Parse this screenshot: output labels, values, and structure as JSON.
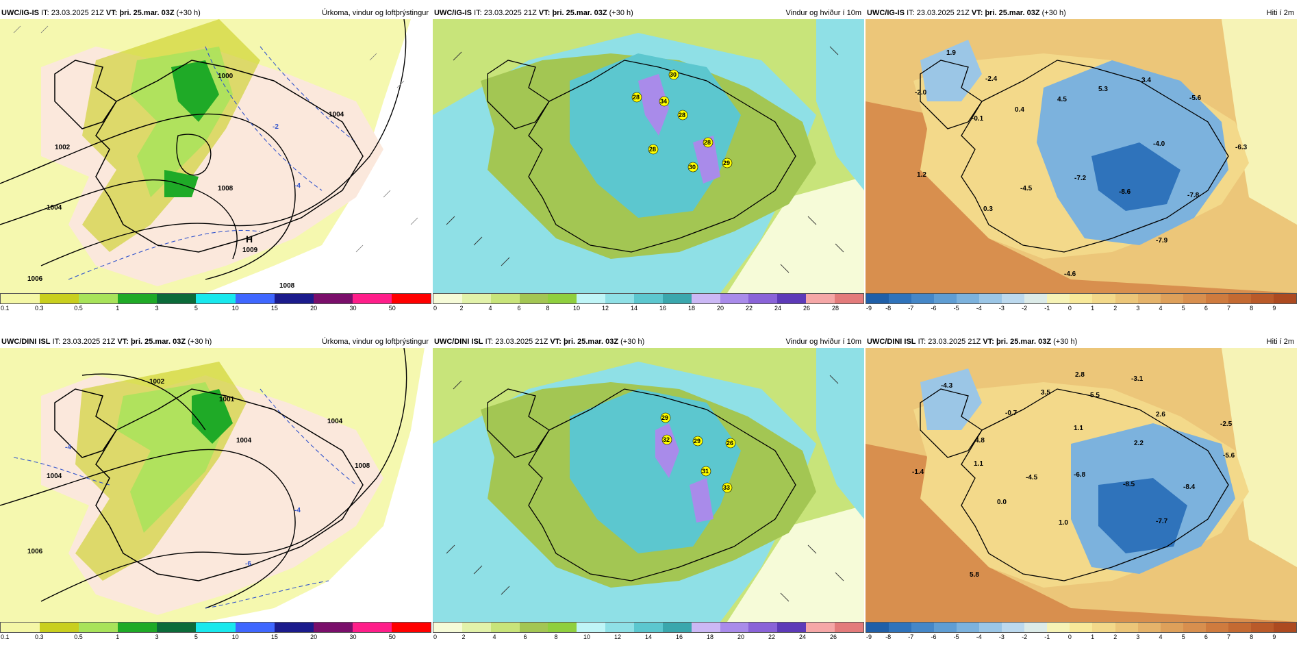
{
  "panels": [
    {
      "id": "p1",
      "model": "UWC/IG-IS",
      "it_label": "IT:",
      "it": "23.03.2025 21Z",
      "vt_label": "VT:",
      "vt": "þri. 25.mar. 03Z",
      "lead": "(+30 h)",
      "title": "Úrkoma, vindur og loftþrýstingur",
      "colors": [
        "#f4f7a6",
        "#c9cf1e",
        "#a8e35a",
        "#1faa27",
        "#0c6b3a",
        "#19e8ed",
        "#3f67ff",
        "#1b1b8c",
        "#7a0f6b",
        "#ff1e8a",
        "#ff0000"
      ],
      "ticks": [
        "0.1",
        "0.3",
        "0.5",
        "1",
        "3",
        "5",
        "10",
        "15",
        "20",
        "30",
        "50"
      ],
      "labels": [
        {
          "t": "1000"
        },
        {
          "t": "1004"
        },
        {
          "t": "1004"
        },
        {
          "t": "1006"
        },
        {
          "t": "1008"
        },
        {
          "t": "1008"
        },
        {
          "t": "1009"
        },
        {
          "t": "H"
        },
        {
          "t": "1002"
        },
        {
          "t": "-2"
        },
        {
          "t": "-4"
        }
      ]
    },
    {
      "id": "p2",
      "model": "UWC/IG-IS",
      "it_label": "IT:",
      "it": "23.03.2025 21Z",
      "vt_label": "VT:",
      "vt": "þri. 25.mar. 03Z",
      "lead": "(+30 h)",
      "title": "Vindur og hviður í 10m",
      "colors": [
        "#f6fbd8",
        "#e2f2aa",
        "#c8e47a",
        "#a3c653",
        "#8fcf3e",
        "#bff5f7",
        "#8fe0e6",
        "#5cc7cf",
        "#3aa7ad",
        "#cbb8f5",
        "#a98bea",
        "#8a63d8",
        "#5d3ab8",
        "#f5a7a7",
        "#e37b7b"
      ],
      "ticks": [
        "0",
        "2",
        "4",
        "6",
        "8",
        "10",
        "12",
        "14",
        "16",
        "18",
        "20",
        "22",
        "24",
        "26",
        "28"
      ],
      "labels": [
        {
          "t": "28"
        },
        {
          "t": "30"
        },
        {
          "t": "34"
        },
        {
          "t": "28"
        },
        {
          "t": "28"
        },
        {
          "t": "28"
        },
        {
          "t": "30"
        },
        {
          "t": "29"
        }
      ]
    },
    {
      "id": "p3",
      "model": "UWC/IG-IS",
      "it_label": "IT:",
      "it": "23.03.2025 21Z",
      "vt_label": "VT:",
      "vt": "þri. 25.mar. 03Z",
      "lead": "(+30 h)",
      "title": "Hiti í 2m",
      "colors": [
        "#1f5fa8",
        "#2f73bb",
        "#4587c8",
        "#5f9dd3",
        "#7cb2dd",
        "#9bc6e6",
        "#bcd9ee",
        "#dcebe8",
        "#f6f3b6",
        "#f8e99a",
        "#f3d98a",
        "#ecc679",
        "#e5b36a",
        "#dea05a",
        "#d88f4e",
        "#cf7b3e",
        "#c46a32",
        "#ba5a29",
        "#ad4a20"
      ],
      "ticks": [
        "-9",
        "-8",
        "-7",
        "-6",
        "-5",
        "-4",
        "-3",
        "-2",
        "-1",
        "0",
        "1",
        "2",
        "3",
        "4",
        "5",
        "6",
        "7",
        "8",
        "9"
      ],
      "labels": [
        {
          "t": "1.9"
        },
        {
          "t": "-2.4"
        },
        {
          "t": "-2.0"
        },
        {
          "t": "0.4"
        },
        {
          "t": "-0.1"
        },
        {
          "t": "4.5"
        },
        {
          "t": "5.3"
        },
        {
          "t": "3.4"
        },
        {
          "t": "-5.6"
        },
        {
          "t": "-6.3"
        },
        {
          "t": "-4.0"
        },
        {
          "t": "1.2"
        },
        {
          "t": "-7.2"
        },
        {
          "t": "-4.5"
        },
        {
          "t": "-8.6"
        },
        {
          "t": "-7.8"
        },
        {
          "t": "0.3"
        },
        {
          "t": "-7.9"
        },
        {
          "t": "-4.6"
        }
      ]
    },
    {
      "id": "p4",
      "model": "UWC/DINI ISL",
      "it_label": "IT:",
      "it": "23.03.2025 21Z",
      "vt_label": "VT:",
      "vt": "þri. 25.mar. 03Z",
      "lead": "(+30 h)",
      "title": "Úrkoma, vindur og loftþrýstingur",
      "colors": [
        "#f4f7a6",
        "#c9cf1e",
        "#a8e35a",
        "#1faa27",
        "#0c6b3a",
        "#19e8ed",
        "#3f67ff",
        "#1b1b8c",
        "#7a0f6b",
        "#ff1e8a",
        "#ff0000"
      ],
      "ticks": [
        "0.1",
        "0.3",
        "0.5",
        "1",
        "3",
        "5",
        "10",
        "15",
        "20",
        "30",
        "50"
      ],
      "labels": [
        {
          "t": "1002"
        },
        {
          "t": "1001"
        },
        {
          "t": "1004"
        },
        {
          "t": "1004"
        },
        {
          "t": "1004"
        },
        {
          "t": "1006"
        },
        {
          "t": "1008"
        },
        {
          "t": "-4"
        },
        {
          "t": "-4"
        },
        {
          "t": "-6"
        }
      ]
    },
    {
      "id": "p5",
      "model": "UWC/DINI ISL",
      "it_label": "IT:",
      "it": "23.03.2025 21Z",
      "vt_label": "VT:",
      "vt": "þri. 25.mar. 03Z",
      "lead": "(+30 h)",
      "title": "Vindur og hviður í 10m",
      "colors": [
        "#f6fbd8",
        "#e2f2aa",
        "#c8e47a",
        "#a3c653",
        "#8fcf3e",
        "#bff5f7",
        "#8fe0e6",
        "#5cc7cf",
        "#3aa7ad",
        "#cbb8f5",
        "#a98bea",
        "#8a63d8",
        "#5d3ab8",
        "#f5a7a7",
        "#e37b7b"
      ],
      "ticks": [
        "0",
        "2",
        "4",
        "6",
        "8",
        "10",
        "12",
        "14",
        "16",
        "18",
        "20",
        "22",
        "24",
        "26"
      ],
      "labels": [
        {
          "t": "29"
        },
        {
          "t": "32"
        },
        {
          "t": "29"
        },
        {
          "t": "26"
        },
        {
          "t": "31"
        },
        {
          "t": "33"
        }
      ]
    },
    {
      "id": "p6",
      "model": "UWC/DINI ISL",
      "it_label": "IT:",
      "it": "23.03.2025 21Z",
      "vt_label": "VT:",
      "vt": "þri. 25.mar. 03Z",
      "lead": "(+30 h)",
      "title": "Hiti í 2m",
      "colors": [
        "#1f5fa8",
        "#2f73bb",
        "#4587c8",
        "#5f9dd3",
        "#7cb2dd",
        "#9bc6e6",
        "#bcd9ee",
        "#dcebe8",
        "#f6f3b6",
        "#f8e99a",
        "#f3d98a",
        "#ecc679",
        "#e5b36a",
        "#dea05a",
        "#d88f4e",
        "#cf7b3e",
        "#c46a32",
        "#ba5a29",
        "#ad4a20"
      ],
      "ticks": [
        "-9",
        "-8",
        "-7",
        "-6",
        "-5",
        "-4",
        "-3",
        "-2",
        "-1",
        "0",
        "1",
        "2",
        "3",
        "4",
        "5",
        "6",
        "7",
        "8",
        "9"
      ],
      "labels": [
        {
          "t": "-4.3"
        },
        {
          "t": "2.8"
        },
        {
          "t": "-3.1"
        },
        {
          "t": "3.5"
        },
        {
          "t": "5.5"
        },
        {
          "t": "-0.7"
        },
        {
          "t": "2.6"
        },
        {
          "t": "1.1"
        },
        {
          "t": "-2.5"
        },
        {
          "t": "4.8"
        },
        {
          "t": "2.2"
        },
        {
          "t": "-5.6"
        },
        {
          "t": "1.1"
        },
        {
          "t": "-1.4"
        },
        {
          "t": "-4.5"
        },
        {
          "t": "-6.8"
        },
        {
          "t": "-8.5"
        },
        {
          "t": "-8.4"
        },
        {
          "t": "0.0"
        },
        {
          "t": "1.0"
        },
        {
          "t": "-7.7"
        },
        {
          "t": "5.8"
        }
      ]
    }
  ]
}
